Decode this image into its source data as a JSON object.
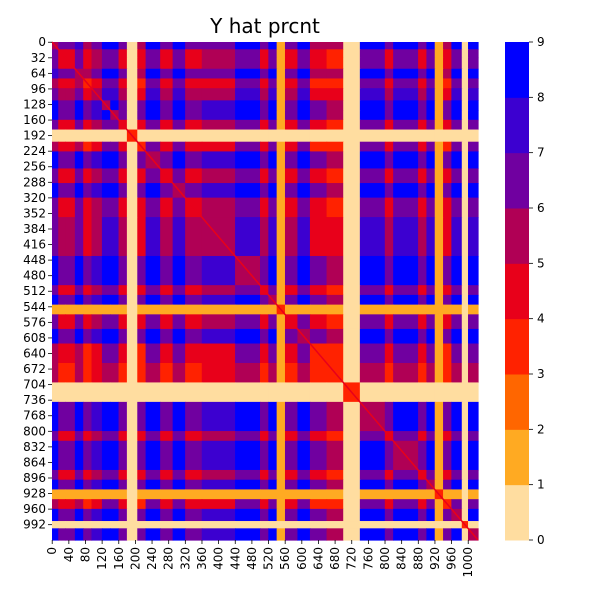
{
  "chart_data": {
    "type": "heatmap",
    "title": "Y hat prcnt",
    "xlabel": "",
    "ylabel": "",
    "n_rows": 1024,
    "n_cols": 1024,
    "x_tick_labels": [
      "0",
      "40",
      "80",
      "120",
      "160",
      "200",
      "240",
      "280",
      "320",
      "360",
      "400",
      "440",
      "480",
      "520",
      "560",
      "600",
      "640",
      "680",
      "720",
      "760",
      "800",
      "840",
      "880",
      "920",
      "960",
      "1000"
    ],
    "y_tick_labels": [
      "0",
      "32",
      "64",
      "96",
      "128",
      "160",
      "192",
      "224",
      "256",
      "288",
      "320",
      "352",
      "384",
      "416",
      "448",
      "480",
      "512",
      "544",
      "576",
      "608",
      "640",
      "672",
      "704",
      "736",
      "768",
      "800",
      "832",
      "864",
      "896",
      "928",
      "960",
      "992"
    ],
    "colorbar": {
      "vmin": 0,
      "vmax": 9,
      "tick_labels": [
        "0",
        "1",
        "2",
        "3",
        "4",
        "5",
        "6",
        "7",
        "8",
        "9"
      ],
      "colors": [
        "#ffffff",
        "#ffdda0",
        "#ffaa22",
        "#ff6600",
        "#ff2200",
        "#e8001a",
        "#b00055",
        "#7000a0",
        "#3c00d0",
        "#0000ff"
      ]
    },
    "bands": [
      {
        "start": 0,
        "end": 15,
        "level": 8
      },
      {
        "start": 15,
        "end": 32,
        "level": 5
      },
      {
        "start": 32,
        "end": 55,
        "level": 5
      },
      {
        "start": 55,
        "end": 75,
        "level": 8
      },
      {
        "start": 75,
        "end": 95,
        "level": 4
      },
      {
        "start": 95,
        "end": 120,
        "level": 6
      },
      {
        "start": 120,
        "end": 140,
        "level": 9
      },
      {
        "start": 140,
        "end": 160,
        "level": 9
      },
      {
        "start": 160,
        "end": 180,
        "level": 5
      },
      {
        "start": 180,
        "end": 205,
        "level": 1
      },
      {
        "start": 205,
        "end": 225,
        "level": 4
      },
      {
        "start": 225,
        "end": 260,
        "level": 9
      },
      {
        "start": 260,
        "end": 290,
        "level": 5
      },
      {
        "start": 290,
        "end": 320,
        "level": 9
      },
      {
        "start": 320,
        "end": 360,
        "level": 5
      },
      {
        "start": 360,
        "end": 440,
        "level": 6
      },
      {
        "start": 440,
        "end": 500,
        "level": 9
      },
      {
        "start": 500,
        "end": 520,
        "level": 5
      },
      {
        "start": 520,
        "end": 540,
        "level": 9
      },
      {
        "start": 540,
        "end": 560,
        "level": 2
      },
      {
        "start": 560,
        "end": 590,
        "level": 5
      },
      {
        "start": 590,
        "end": 620,
        "level": 9
      },
      {
        "start": 620,
        "end": 660,
        "level": 4
      },
      {
        "start": 660,
        "end": 700,
        "level": 3
      },
      {
        "start": 700,
        "end": 740,
        "level": 1
      },
      {
        "start": 740,
        "end": 800,
        "level": 9
      },
      {
        "start": 800,
        "end": 820,
        "level": 5
      },
      {
        "start": 820,
        "end": 880,
        "level": 9
      },
      {
        "start": 880,
        "end": 900,
        "level": 5
      },
      {
        "start": 900,
        "end": 920,
        "level": 9
      },
      {
        "start": 920,
        "end": 940,
        "level": 2
      },
      {
        "start": 940,
        "end": 960,
        "level": 4
      },
      {
        "start": 960,
        "end": 985,
        "level": 9
      },
      {
        "start": 985,
        "end": 1000,
        "level": 1
      },
      {
        "start": 1000,
        "end": 1024,
        "level": 9
      }
    ],
    "grid": false
  }
}
